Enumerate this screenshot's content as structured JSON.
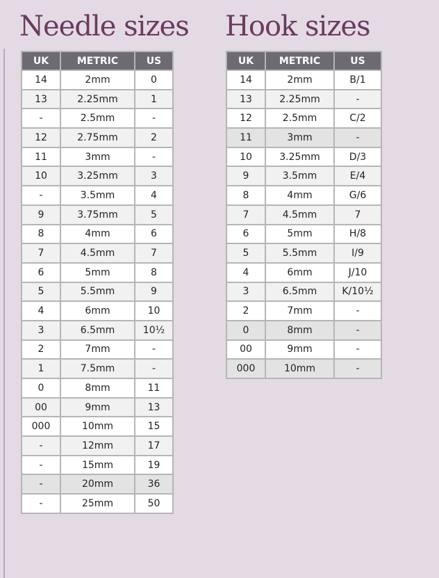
{
  "needles": {
    "title": "Needle sizes",
    "headers": [
      "UK",
      "METRIC",
      "US"
    ],
    "rows": [
      {
        "uk": "14",
        "metric": "2mm",
        "us": "0"
      },
      {
        "uk": "13",
        "metric": "2.25mm",
        "us": "1"
      },
      {
        "uk": "-",
        "metric": "2.5mm",
        "us": "-"
      },
      {
        "uk": "12",
        "metric": "2.75mm",
        "us": "2"
      },
      {
        "uk": "11",
        "metric": "3mm",
        "us": "-"
      },
      {
        "uk": "10",
        "metric": "3.25mm",
        "us": "3"
      },
      {
        "uk": "-",
        "metric": "3.5mm",
        "us": "4"
      },
      {
        "uk": "9",
        "metric": "3.75mm",
        "us": "5"
      },
      {
        "uk": "8",
        "metric": "4mm",
        "us": "6"
      },
      {
        "uk": "7",
        "metric": "4.5mm",
        "us": "7"
      },
      {
        "uk": "6",
        "metric": "5mm",
        "us": "8"
      },
      {
        "uk": "5",
        "metric": "5.5mm",
        "us": "9"
      },
      {
        "uk": "4",
        "metric": "6mm",
        "us": "10"
      },
      {
        "uk": "3",
        "metric": "6.5mm",
        "us": "10½"
      },
      {
        "uk": "2",
        "metric": "7mm",
        "us": "-"
      },
      {
        "uk": "1",
        "metric": "7.5mm",
        "us": "-"
      },
      {
        "uk": "0",
        "metric": "8mm",
        "us": "11"
      },
      {
        "uk": "00",
        "metric": "9mm",
        "us": "13"
      },
      {
        "uk": "000",
        "metric": "10mm",
        "us": "15"
      },
      {
        "uk": "-",
        "metric": "12mm",
        "us": "17"
      },
      {
        "uk": "-",
        "metric": "15mm",
        "us": "19"
      },
      {
        "uk": "-",
        "metric": "20mm",
        "us": "36",
        "highlight": true
      },
      {
        "uk": "-",
        "metric": "25mm",
        "us": "50"
      }
    ]
  },
  "hooks": {
    "title": "Hook sizes",
    "headers": [
      "UK",
      "METRIC",
      "US"
    ],
    "rows": [
      {
        "uk": "14",
        "metric": "2mm",
        "us": "B/1"
      },
      {
        "uk": "13",
        "metric": "2.25mm",
        "us": "-"
      },
      {
        "uk": "12",
        "metric": "2.5mm",
        "us": "C/2"
      },
      {
        "uk": "11",
        "metric": "3mm",
        "us": "-",
        "highlight": true
      },
      {
        "uk": "10",
        "metric": "3.25mm",
        "us": "D/3"
      },
      {
        "uk": "9",
        "metric": "3.5mm",
        "us": "E/4"
      },
      {
        "uk": "8",
        "metric": "4mm",
        "us": "G/6"
      },
      {
        "uk": "7",
        "metric": "4.5mm",
        "us": "7"
      },
      {
        "uk": "6",
        "metric": "5mm",
        "us": "H/8"
      },
      {
        "uk": "5",
        "metric": "5.5mm",
        "us": "I/9"
      },
      {
        "uk": "4",
        "metric": "6mm",
        "us": "J/10"
      },
      {
        "uk": "3",
        "metric": "6.5mm",
        "us": "K/10½"
      },
      {
        "uk": "2",
        "metric": "7mm",
        "us": "-"
      },
      {
        "uk": "0",
        "metric": "8mm",
        "us": "-",
        "highlight": true
      },
      {
        "uk": "00",
        "metric": "9mm",
        "us": "-"
      },
      {
        "uk": "000",
        "metric": "10mm",
        "us": "-",
        "highlight": true
      }
    ]
  },
  "colors": {
    "background": "#e4dae4",
    "title": "#6a3b5f",
    "header": "#6d6a72"
  }
}
